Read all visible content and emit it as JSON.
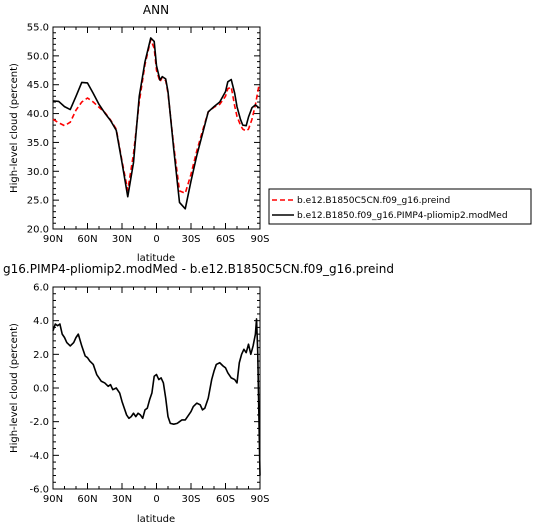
{
  "chart_data": [
    {
      "type": "line",
      "title": "ANN",
      "xlabel": "latitude",
      "ylabel": "High-level cloud (percent)",
      "xlim": [
        90,
        -90
      ],
      "ylim": [
        20.0,
        55.0
      ],
      "xticks": [
        90,
        60,
        30,
        0,
        -30,
        -60,
        -90
      ],
      "xtick_labels": [
        "90N",
        "60N",
        "30N",
        "0",
        "30S",
        "60S",
        "90S"
      ],
      "yticks": [
        20,
        25,
        30,
        35,
        40,
        45,
        50,
        55
      ],
      "ytick_labels": [
        "20.0",
        "25.0",
        "30.0",
        "35.0",
        "40.0",
        "45.0",
        "50.0",
        "55.0"
      ],
      "legend_placement": "right",
      "series": [
        {
          "name": "b.e12.B1850C5CN.f09_g16.preind",
          "color": "#ff0000",
          "dash": "dashed",
          "x": [
            90,
            85,
            80,
            75,
            70,
            65,
            60,
            55,
            50,
            45,
            40,
            35,
            30,
            25,
            20,
            15,
            10,
            5,
            2,
            0,
            -3,
            -5,
            -8,
            -10,
            -15,
            -20,
            -25,
            -30,
            -35,
            -40,
            -45,
            -50,
            -55,
            -60,
            -62,
            -65,
            -68,
            -70,
            -73,
            -75,
            -78,
            -80,
            -83,
            -86,
            -89
          ],
          "y": [
            39.0,
            38.4,
            37.9,
            38.5,
            40.6,
            42.0,
            42.7,
            42.0,
            41.1,
            40.2,
            38.9,
            37.3,
            31.8,
            26.7,
            33.0,
            42.0,
            48.5,
            52.8,
            51.3,
            47.5,
            45.5,
            46.3,
            45.7,
            43.5,
            34.4,
            26.6,
            26.2,
            29.5,
            33.5,
            37.0,
            40.3,
            41.1,
            41.6,
            43.0,
            44.3,
            44.6,
            41.3,
            39.5,
            38.0,
            37.3,
            37.0,
            37.3,
            39.0,
            41.5,
            44.8
          ]
        },
        {
          "name": "b.e12.B1850.f09_g16.PIMP4-pliomip2.modMed",
          "color": "#000000",
          "dash": "solid",
          "x": [
            90,
            85,
            80,
            75,
            70,
            65,
            60,
            55,
            50,
            45,
            40,
            35,
            30,
            25,
            20,
            15,
            10,
            5,
            2,
            0,
            -3,
            -5,
            -8,
            -10,
            -15,
            -20,
            -25,
            -30,
            -35,
            -40,
            -45,
            -50,
            -55,
            -60,
            -62,
            -65,
            -68,
            -70,
            -73,
            -75,
            -78,
            -80,
            -83,
            -86,
            -89
          ],
          "y": [
            42.2,
            42.1,
            41.2,
            40.7,
            43.0,
            45.4,
            45.3,
            43.5,
            41.6,
            40.1,
            38.8,
            37.1,
            31.5,
            25.6,
            31.5,
            43.0,
            49.0,
            53.1,
            52.5,
            48.3,
            45.8,
            46.4,
            46.0,
            43.8,
            33.8,
            24.6,
            23.5,
            28.3,
            32.7,
            36.5,
            40.3,
            41.2,
            42.0,
            43.8,
            45.5,
            45.9,
            43.5,
            41.2,
            39.0,
            38.0,
            37.9,
            39.4,
            41.0,
            41.5,
            41.0
          ]
        }
      ]
    },
    {
      "type": "line",
      "title": "g16.PIMP4-pliomip2.modMed  -  b.e12.B1850C5CN.f09_g16.preind",
      "xlabel": "latitude",
      "ylabel": "High-level cloud (percent)",
      "xlim": [
        90,
        -90
      ],
      "ylim": [
        -6.0,
        6.0
      ],
      "xticks": [
        90,
        60,
        30,
        0,
        -30,
        -60,
        -90
      ],
      "xtick_labels": [
        "90N",
        "60N",
        "30N",
        "0",
        "30S",
        "60S",
        "90S"
      ],
      "yticks": [
        -6,
        -4,
        -2,
        0,
        2,
        4,
        6
      ],
      "ytick_labels": [
        "-6.0",
        "-4.0",
        "-2.0",
        "0.0",
        "2.0",
        "4.0",
        "6.0"
      ],
      "series": [
        {
          "name": "",
          "color": "#000000",
          "dash": "solid",
          "x": [
            90,
            88,
            86,
            84,
            82,
            80,
            78,
            75,
            72,
            70,
            68,
            65,
            62,
            60,
            58,
            55,
            52,
            50,
            48,
            45,
            42,
            40,
            38,
            35,
            32,
            30,
            28,
            26,
            24,
            22,
            20,
            18,
            16,
            14,
            12,
            10,
            8,
            6,
            4,
            2,
            0,
            -2,
            -4,
            -6,
            -8,
            -10,
            -12,
            -15,
            -18,
            -20,
            -22,
            -25,
            -28,
            -30,
            -32,
            -35,
            -38,
            -40,
            -42,
            -45,
            -48,
            -50,
            -52,
            -55,
            -58,
            -60,
            -62,
            -65,
            -68,
            -70,
            -72,
            -74,
            -76,
            -78,
            -80,
            -82,
            -84,
            -86,
            -87,
            -88,
            -89,
            -90
          ],
          "y": [
            3.4,
            3.8,
            3.7,
            3.8,
            3.2,
            3.0,
            2.7,
            2.5,
            2.7,
            3.0,
            3.2,
            2.5,
            1.9,
            1.8,
            1.6,
            1.4,
            0.8,
            0.6,
            0.4,
            0.3,
            0.1,
            0.2,
            -0.1,
            0.0,
            -0.3,
            -0.8,
            -1.2,
            -1.6,
            -1.8,
            -1.7,
            -1.5,
            -1.7,
            -1.5,
            -1.6,
            -1.8,
            -1.3,
            -1.2,
            -0.7,
            -0.3,
            0.7,
            0.8,
            0.5,
            0.6,
            0.3,
            -0.6,
            -1.7,
            -2.1,
            -2.15,
            -2.1,
            -2.0,
            -1.9,
            -1.9,
            -1.6,
            -1.4,
            -1.1,
            -0.9,
            -1.0,
            -1.3,
            -1.2,
            -0.6,
            0.5,
            1.0,
            1.4,
            1.5,
            1.3,
            1.2,
            0.9,
            0.6,
            0.5,
            0.3,
            1.5,
            2.0,
            2.3,
            2.1,
            2.6,
            2.0,
            2.5,
            3.2,
            4.1,
            2.2,
            -1.5,
            -5.2
          ]
        }
      ]
    }
  ]
}
